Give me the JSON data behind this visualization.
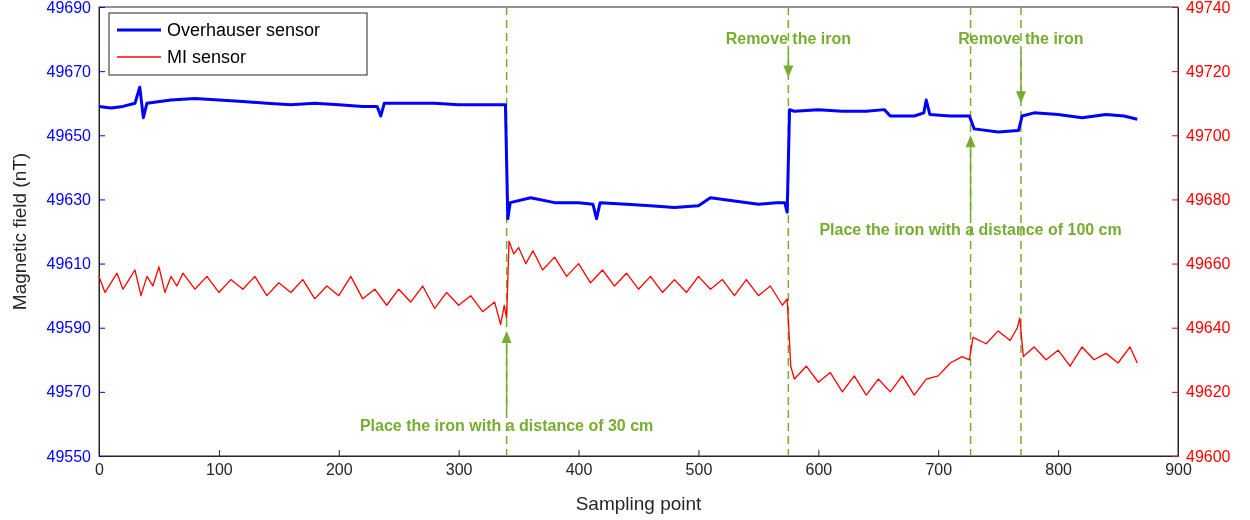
{
  "chart_data": {
    "type": "line",
    "xlabel": "Sampling point",
    "ylabel": "Magnetic field (nT)",
    "xlim": [
      0,
      900
    ],
    "xticks": [
      0,
      100,
      200,
      300,
      400,
      500,
      600,
      700,
      800,
      900
    ],
    "ylim": [
      49550,
      49690
    ],
    "yticks": [
      49550,
      49570,
      49590,
      49610,
      49630,
      49650,
      49670,
      49690
    ],
    "y2lim": [
      49600,
      49740
    ],
    "y2ticks": [
      49600,
      49620,
      49640,
      49660,
      49680,
      49700,
      49720,
      49740
    ],
    "legend": "top left",
    "grid": false,
    "marker": "none",
    "line_style": "solid",
    "series": [
      {
        "name": "Overhauser sensor",
        "color": "#0000ff",
        "axis": "y",
        "x": [
          0,
          10,
          20,
          30,
          34,
          37,
          40,
          60,
          80,
          100,
          120,
          140,
          160,
          180,
          200,
          220,
          232,
          235,
          238,
          260,
          280,
          300,
          320,
          339,
          341,
          343,
          360,
          380,
          400,
          412,
          415,
          418,
          440,
          460,
          480,
          500,
          510,
          530,
          550,
          565,
          572,
          574,
          576,
          580,
          600,
          620,
          640,
          655,
          660,
          680,
          688,
          690,
          693,
          710,
          726,
          730,
          750,
          767,
          770,
          780,
          800,
          820,
          840,
          855,
          866
        ],
        "values": [
          49659,
          49658.5,
          49659,
          49660,
          49665,
          49655.5,
          49660,
          49661,
          49661.5,
          49661,
          49660.5,
          49660,
          49659.5,
          49660,
          49659.5,
          49659,
          49659,
          49656,
          49660,
          49660,
          49660,
          49659.5,
          49659.5,
          49659.5,
          49624,
          49629,
          49630.5,
          49629,
          49629,
          49628.5,
          49624,
          49629,
          49628.5,
          49628,
          49627.5,
          49628,
          49630.5,
          49629.5,
          49628.5,
          49629,
          49629,
          49626,
          49658,
          49657.5,
          49658,
          49657.5,
          49657.5,
          49658,
          49656,
          49656,
          49657,
          49661,
          49656.5,
          49656,
          49656,
          49652,
          49651,
          49651.5,
          49656,
          49657,
          49656.5,
          49655.5,
          49656.5,
          49656,
          49655
        ]
      },
      {
        "name": "MI sensor",
        "color": "#ff0000",
        "axis": "y2",
        "x": [
          0,
          5,
          10,
          15,
          20,
          25,
          30,
          35,
          40,
          45,
          50,
          55,
          60,
          65,
          70,
          80,
          90,
          100,
          110,
          120,
          130,
          140,
          150,
          160,
          170,
          180,
          190,
          200,
          210,
          220,
          230,
          240,
          250,
          260,
          270,
          280,
          290,
          300,
          310,
          320,
          330,
          335,
          338,
          340,
          342,
          346,
          350,
          356,
          362,
          370,
          380,
          390,
          400,
          410,
          420,
          430,
          440,
          450,
          460,
          470,
          480,
          490,
          500,
          510,
          520,
          530,
          540,
          550,
          560,
          570,
          574,
          577,
          580,
          590,
          600,
          610,
          620,
          630,
          640,
          650,
          660,
          670,
          680,
          690,
          700,
          710,
          720,
          726,
          729,
          740,
          750,
          760,
          766,
          768,
          771,
          780,
          790,
          800,
          810,
          820,
          830,
          840,
          850,
          860,
          866
        ],
        "values": [
          49656,
          49651,
          49654,
          49657,
          49652,
          49655,
          49658,
          49650,
          49656,
          49653,
          49659,
          49651,
          49656,
          49653,
          49657,
          49652,
          49656,
          49651,
          49655,
          49652,
          49656,
          49650,
          49654,
          49651,
          49655,
          49649,
          49653,
          49650,
          49656,
          49649,
          49652,
          49647,
          49652,
          49648,
          49653,
          49646,
          49651,
          49647,
          49650,
          49645,
          49648,
          49641,
          49647,
          49643,
          49667,
          49663,
          49665,
          49660,
          49664,
          49658,
          49662,
          49656,
          49660,
          49654,
          49658,
          49653,
          49657,
          49652,
          49656,
          49651,
          49655,
          49651,
          49656,
          49652,
          49655,
          49650,
          49655,
          49650,
          49653,
          49647,
          49649,
          49628,
          49624,
          49628,
          49623,
          49626,
          49620,
          49625,
          49619,
          49624,
          49620,
          49625,
          49619,
          49624,
          49625,
          49629,
          49631,
          49630,
          49637,
          49635,
          49639,
          49636,
          49640,
          49643,
          49631,
          49634,
          49630,
          49633,
          49628,
          49634,
          49630,
          49632,
          49629,
          49634,
          49629
        ]
      }
    ],
    "ref_lines": [
      {
        "axis": "x",
        "value": 340,
        "color": "#77ac30",
        "line_style": "dashed"
      },
      {
        "axis": "x",
        "value": 575,
        "color": "#77ac30",
        "line_style": "dashed"
      },
      {
        "axis": "x",
        "value": 727,
        "color": "#77ac30",
        "line_style": "dashed"
      },
      {
        "axis": "x",
        "value": 769,
        "color": "#77ac30",
        "line_style": "dashed"
      }
    ],
    "annotations": [
      {
        "text": "Place the iron with a distance of 30 cm",
        "x": 340,
        "y": 49589
      },
      {
        "text": "Remove the iron",
        "x": 575,
        "y": 49668
      },
      {
        "text": "Place the iron with a distance of 100 cm",
        "x": 727,
        "y": 49650
      },
      {
        "text": "Remove the iron",
        "x": 769,
        "y": 49660
      }
    ]
  }
}
